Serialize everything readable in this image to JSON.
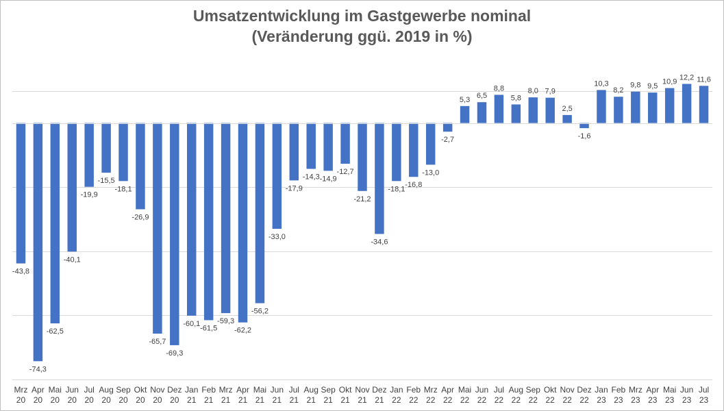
{
  "chart_data": {
    "type": "bar",
    "title": "Umsatzentwicklung im Gastgewerbe nominal",
    "subtitle": "(Veränderung ggü. 2019 in %)",
    "xlabel": "",
    "ylabel": "",
    "ylim": [
      -80,
      20
    ],
    "grid": true,
    "gridlines": [
      -80,
      -60,
      -40,
      -20,
      0,
      10
    ],
    "legend": "none",
    "bar_color": "#4472c4",
    "categories": [
      [
        "Mrz",
        "20"
      ],
      [
        "Apr",
        "20"
      ],
      [
        "Mai",
        "20"
      ],
      [
        "Jun",
        "20"
      ],
      [
        "Jul",
        "20"
      ],
      [
        "Aug",
        "20"
      ],
      [
        "Sep",
        "20"
      ],
      [
        "Okt",
        "20"
      ],
      [
        "Nov",
        "20"
      ],
      [
        "Dez",
        "20"
      ],
      [
        "Jan",
        "21"
      ],
      [
        "Feb",
        "21"
      ],
      [
        "Mrz",
        "21"
      ],
      [
        "Apr",
        "21"
      ],
      [
        "Mai",
        "21"
      ],
      [
        "Jun",
        "21"
      ],
      [
        "Jul",
        "21"
      ],
      [
        "Aug",
        "21"
      ],
      [
        "Sep",
        "21"
      ],
      [
        "Okt",
        "21"
      ],
      [
        "Nov",
        "21"
      ],
      [
        "Dez",
        "21"
      ],
      [
        "Jan",
        "22"
      ],
      [
        "Feb",
        "22"
      ],
      [
        "Mrz",
        "22"
      ],
      [
        "Apr",
        "22"
      ],
      [
        "Mai",
        "22"
      ],
      [
        "Jun",
        "22"
      ],
      [
        "Jul",
        "22"
      ],
      [
        "Aug",
        "22"
      ],
      [
        "Sep",
        "22"
      ],
      [
        "Okt",
        "22"
      ],
      [
        "Nov",
        "22"
      ],
      [
        "Dez",
        "22"
      ],
      [
        "Jan",
        "23"
      ],
      [
        "Feb",
        "23"
      ],
      [
        "Mrz",
        "23"
      ],
      [
        "Apr",
        "23"
      ],
      [
        "Mai",
        "23"
      ],
      [
        "Jun",
        "23"
      ],
      [
        "Jul",
        "23"
      ]
    ],
    "values": [
      -43.8,
      -74.3,
      -62.5,
      -40.1,
      -19.9,
      -15.5,
      -18.1,
      -26.9,
      -65.7,
      -69.3,
      -60.1,
      -61.5,
      -59.3,
      -62.2,
      -56.2,
      -33.0,
      -17.9,
      -14.3,
      -14.9,
      -12.7,
      -21.2,
      -34.6,
      -18.1,
      -16.8,
      -13.0,
      -2.7,
      5.3,
      6.5,
      8.8,
      5.8,
      8.0,
      7.9,
      2.5,
      -1.6,
      10.3,
      8.2,
      9.8,
      9.5,
      10.9,
      12.2,
      11.6
    ],
    "data_labels": [
      "-43,8",
      "-74,3",
      "-62,5",
      "-40,1",
      "-19,9",
      "-15,5",
      "-18,1",
      "-26,9",
      "-65,7",
      "-69,3",
      "-60,1",
      "-61,5",
      "-59,3",
      "-62,2",
      "-56,2",
      "-33,0",
      "-17,9",
      "-14,3",
      "-14,9",
      "-12,7",
      "-21,2",
      "-34,6",
      "-18,1",
      "-16,8",
      "-13,0",
      "-2,7",
      "5,3",
      "6,5",
      "8,8",
      "5,8",
      "8,0",
      "7,9",
      "2,5",
      "-1,6",
      "10,3",
      "8,2",
      "9,8",
      "9,5",
      "10,9",
      "12,2",
      "11,6"
    ]
  }
}
